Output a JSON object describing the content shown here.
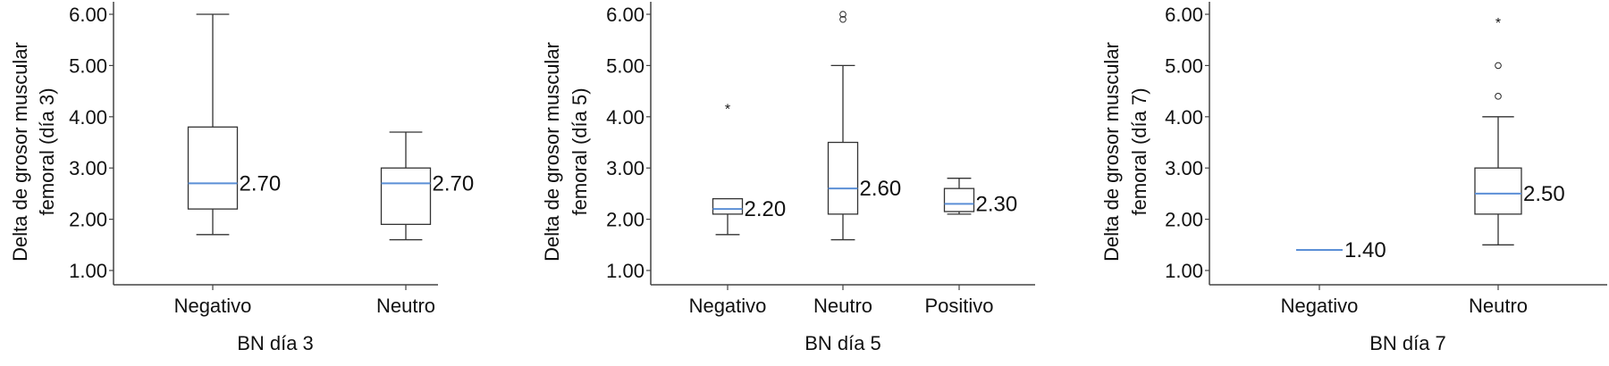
{
  "chart_data": [
    {
      "type": "boxplot",
      "xlabel": "BN día 3",
      "ylabel_lines": [
        "Delta de grosor muscular",
        "femoral (día 3)"
      ],
      "ylim": [
        0.9,
        6.3
      ],
      "yticks": [
        "1.00",
        "2.00",
        "3.00",
        "4.00",
        "5.00",
        "6.00"
      ],
      "ytick_values": [
        1,
        2,
        3,
        4,
        5,
        6
      ],
      "categories": [
        "Negativo",
        "Neutro"
      ],
      "boxes": [
        {
          "min": 1.7,
          "q1": 2.2,
          "median": 2.7,
          "q3": 3.8,
          "max": 6.0,
          "median_label": "2.70",
          "outliers": [],
          "extremes": []
        },
        {
          "min": 1.6,
          "q1": 1.9,
          "median": 2.7,
          "q3": 3.0,
          "max": 3.7,
          "median_label": "2.70",
          "outliers": [],
          "extremes": []
        }
      ]
    },
    {
      "type": "boxplot",
      "xlabel": "BN día 5",
      "ylabel_lines": [
        "Delta de grosor muscular",
        "femoral (día 5)"
      ],
      "ylim": [
        0.9,
        6.3
      ],
      "yticks": [
        "1.00",
        "2.00",
        "3.00",
        "4.00",
        "5.00",
        "6.00"
      ],
      "ytick_values": [
        1,
        2,
        3,
        4,
        5,
        6
      ],
      "categories": [
        "Negativo",
        "Neutro",
        "Positivo"
      ],
      "boxes": [
        {
          "min": 1.7,
          "q1": 2.1,
          "median": 2.2,
          "q3": 2.4,
          "max": 2.4,
          "median_label": "2.20",
          "outliers": [],
          "extremes": [
            4.2
          ]
        },
        {
          "min": 1.6,
          "q1": 2.1,
          "median": 2.6,
          "q3": 3.5,
          "max": 5.0,
          "median_label": "2.60",
          "outliers": [
            5.9,
            6.0
          ],
          "extremes": []
        },
        {
          "min": 2.1,
          "q1": 2.15,
          "median": 2.3,
          "q3": 2.6,
          "max": 2.8,
          "median_label": "2.30",
          "outliers": [],
          "extremes": []
        }
      ]
    },
    {
      "type": "boxplot",
      "xlabel": "BN día 7",
      "ylabel_lines": [
        "Delta de grosor muscular",
        "femoral (día 7)"
      ],
      "ylim": [
        0.9,
        6.3
      ],
      "yticks": [
        "1.00",
        "2.00",
        "3.00",
        "4.00",
        "5.00",
        "6.00"
      ],
      "ytick_values": [
        1,
        2,
        3,
        4,
        5,
        6
      ],
      "categories": [
        "Negativo",
        "Neutro"
      ],
      "boxes": [
        {
          "min": 1.4,
          "q1": 1.4,
          "median": 1.4,
          "q3": 1.4,
          "max": 1.4,
          "median_label": "1.40",
          "outliers": [],
          "extremes": [],
          "single": true
        },
        {
          "min": 1.5,
          "q1": 2.1,
          "median": 2.5,
          "q3": 3.0,
          "max": 4.0,
          "median_label": "2.50",
          "outliers": [
            4.4,
            5.0
          ],
          "extremes": [
            5.88
          ]
        }
      ]
    }
  ],
  "colors": {
    "median": "#5b8fd6",
    "box": "#333333",
    "axis": "#444444"
  }
}
